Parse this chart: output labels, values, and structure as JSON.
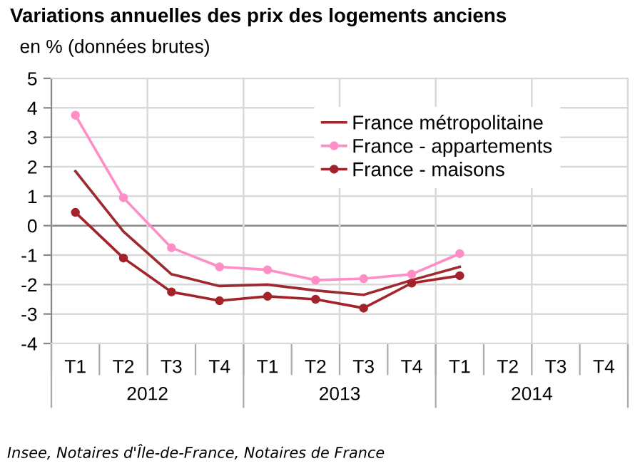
{
  "chart_data": {
    "type": "line",
    "title": "Variations annuelles des prix des logements anciens",
    "ylabel": "en % (données brutes)",
    "categories": [
      "T1",
      "T2",
      "T3",
      "T4",
      "T1",
      "T2",
      "T3",
      "T4",
      "T1",
      "T2",
      "T3",
      "T4"
    ],
    "series": [
      {
        "name": "France métropolitaine",
        "color": "#9e2a2f",
        "marker": "none",
        "values": [
          1.85,
          -0.2,
          -1.65,
          -2.05,
          -2.0,
          -2.2,
          -2.35,
          -1.85,
          -1.4,
          null,
          null,
          null
        ]
      },
      {
        "name": "France - appartements",
        "color": "#ff8ec6",
        "marker": "circle",
        "values": [
          3.75,
          0.95,
          -0.75,
          -1.4,
          -1.5,
          -1.85,
          -1.8,
          -1.65,
          -0.95,
          null,
          null,
          null
        ]
      },
      {
        "name": "France - maisons",
        "color": "#a3232a",
        "marker": "circle",
        "values": [
          0.45,
          -1.1,
          -2.25,
          -2.55,
          -2.4,
          -2.5,
          -2.8,
          -1.95,
          -1.7,
          null,
          null,
          null
        ]
      }
    ],
    "ylim": [
      -4,
      5
    ],
    "yticks": [
      -4,
      -3,
      -2,
      -1,
      0,
      1,
      2,
      3,
      4,
      5
    ],
    "grid": true,
    "legend": "top right",
    "line_style": "solid",
    "annotations": [
      "2012",
      "2013",
      "2014",
      "Insee, Notaires d'Île-de-France, Notaires de France"
    ]
  }
}
